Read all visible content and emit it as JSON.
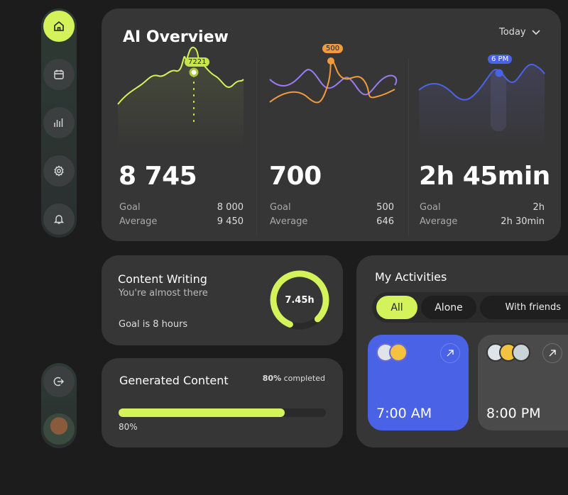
{
  "sidebar": {
    "items": [
      {
        "icon": "home-icon",
        "active": true
      },
      {
        "icon": "calendar-icon"
      },
      {
        "icon": "chart-icon"
      },
      {
        "icon": "gear-icon"
      },
      {
        "icon": "bell-icon"
      }
    ],
    "logout_icon": "logout-icon"
  },
  "overview": {
    "title": "AI Overview",
    "period": "Today",
    "metrics": [
      {
        "value": "8 745",
        "tooltip": "7221",
        "color": "#d4f25a",
        "goal_label": "Goal",
        "goal": "8 000",
        "avg_label": "Average",
        "avg": "9 450"
      },
      {
        "value": "700",
        "tooltip": "500",
        "color": "#f39a3c",
        "color2": "#9b7cf0",
        "goal_label": "Goal",
        "goal": "500",
        "avg_label": "Average",
        "avg": "646"
      },
      {
        "value": "2h 45min",
        "tooltip": "6 PM",
        "color": "#4a63e6",
        "goal_label": "Goal",
        "goal": "2h",
        "avg_label": "Average",
        "avg": "2h 30min"
      }
    ]
  },
  "content_writing": {
    "title": "Content Writing",
    "subtitle": "You're almost there",
    "goal": "Goal is 8 hours",
    "value": "7.45h",
    "progress": 0.93
  },
  "generated": {
    "title": "Generated Content",
    "completed_pct": "80%",
    "completed_label": "completed",
    "percent_label": "80%",
    "progress": 0.8
  },
  "activities": {
    "title": "My Activities",
    "filters": [
      "All",
      "Alone",
      "With friends"
    ],
    "active_filter": "All",
    "items": [
      {
        "time": "7:00 AM",
        "color": "#4a63e6",
        "avatars": 2
      },
      {
        "time": "8:00 PM",
        "color": "#4a4a4a",
        "avatars": 3
      }
    ]
  }
}
